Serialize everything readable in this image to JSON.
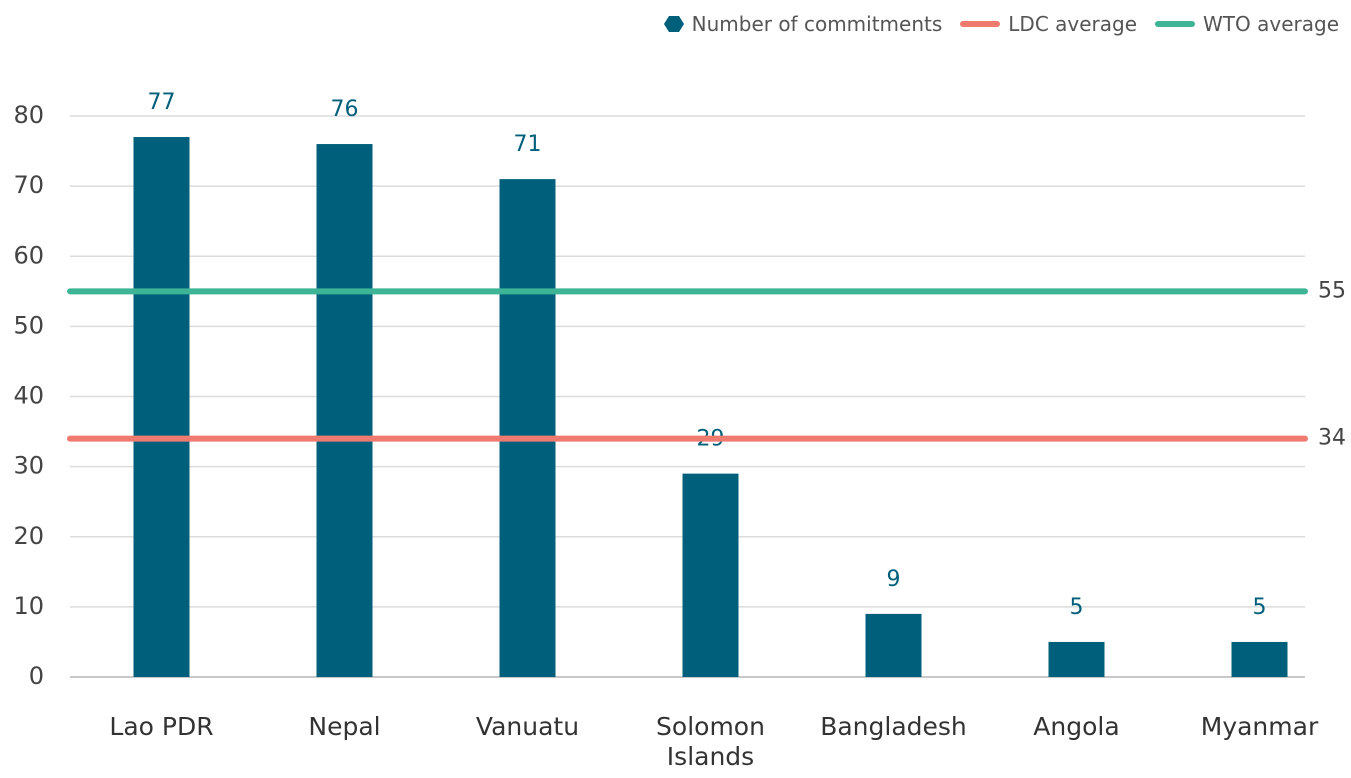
{
  "chart_data": {
    "type": "bar",
    "categories": [
      "Lao PDR",
      "Nepal",
      "Vanuatu",
      "Solomon Islands",
      "Bangladesh",
      "Angola",
      "Myanmar"
    ],
    "series": [
      {
        "name": "Number of commitments",
        "color": "#005f7a",
        "values": [
          77,
          76,
          71,
          29,
          9,
          5,
          5
        ]
      }
    ],
    "reference_lines": [
      {
        "name": "LDC average",
        "color": "#ef7b70",
        "value": 34
      },
      {
        "name": "WTO average",
        "color": "#3db495",
        "value": 55
      }
    ],
    "ylim": [
      0,
      80
    ],
    "yticks": [
      0,
      10,
      20,
      30,
      40,
      50,
      60,
      70,
      80
    ],
    "grid": true,
    "legend": "top-right"
  }
}
